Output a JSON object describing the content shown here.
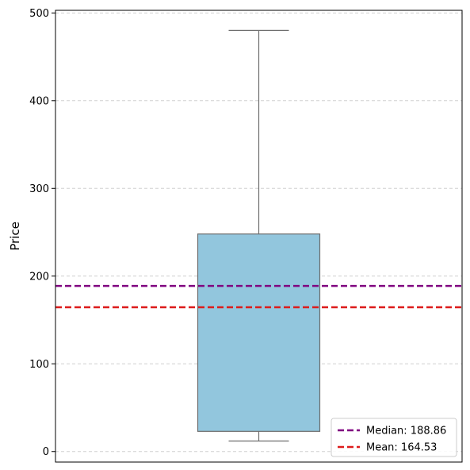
{
  "chart_data": {
    "type": "box",
    "xlabel": "",
    "ylabel": "Price",
    "ylim": [
      -12,
      503
    ],
    "yticks": [
      0,
      100,
      200,
      300,
      400,
      500
    ],
    "grid": true,
    "box": {
      "whisker_low": 12,
      "q1": 23,
      "q3": 248,
      "whisker_high": 480,
      "color": "#92c6dd",
      "edge_color": "#6e6e6e"
    },
    "reference_lines": [
      {
        "label": "Median: 188.86",
        "value": 188.86,
        "color": "#800080",
        "style": "dashed"
      },
      {
        "label": "Mean: 164.53",
        "value": 164.53,
        "color": "#dd1c1c",
        "style": "dashed"
      }
    ],
    "legend_position": "bottom-right"
  }
}
